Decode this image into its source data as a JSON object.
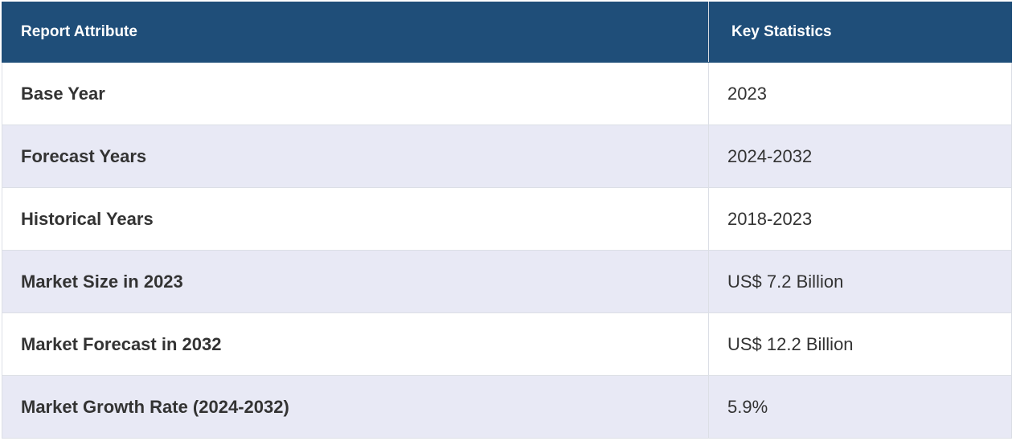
{
  "table": {
    "headers": [
      "Report Attribute",
      "Key Statistics"
    ],
    "rows": [
      {
        "attribute": "Base Year",
        "value": "2023"
      },
      {
        "attribute": "Forecast Years",
        "value": "2024-2032"
      },
      {
        "attribute": "Historical Years",
        "value": "2018-2023"
      },
      {
        "attribute": "Market Size in 2023",
        "value": "US$ 7.2 Billion"
      },
      {
        "attribute": "Market Forecast in 2032",
        "value": "US$ 12.2 Billion"
      },
      {
        "attribute": "Market Growth Rate (2024-2032)",
        "value": "5.9%"
      }
    ]
  },
  "colors": {
    "header_bg": "#1f4e79",
    "header_text": "#ffffff",
    "row_alt_bg": "#e8e9f5",
    "row_bg": "#ffffff",
    "text": "#333333"
  }
}
